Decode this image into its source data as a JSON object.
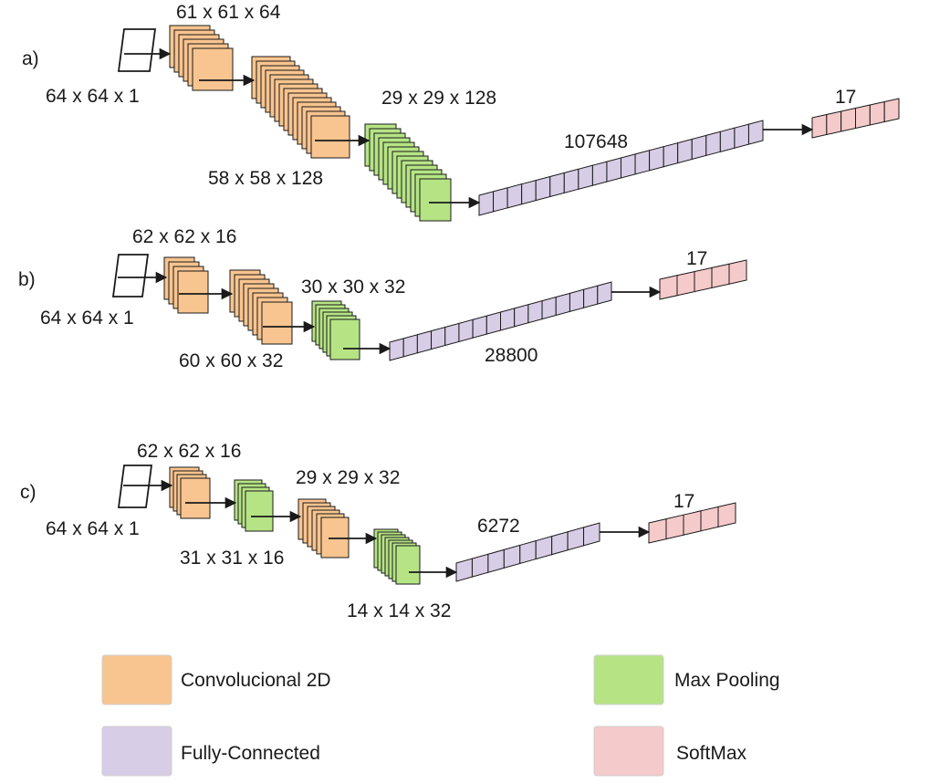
{
  "colors": {
    "conv": "#f8c48f",
    "pool": "#b6e485",
    "fc": "#d8cde6",
    "softmax": "#f5caca",
    "stroke": "#1a1a1a"
  },
  "panels": {
    "a": {
      "label": "a)",
      "input": "64 x 64 x 1",
      "conv1": "61 x 61 x 64",
      "conv2": "58 x 58 x 128",
      "pool1": "29 x 29 x 128",
      "fc": "107648",
      "softmax": "17"
    },
    "b": {
      "label": "b)",
      "input": "64 x 64 x 1",
      "conv1": "62 x 62 x 16",
      "conv2": "60 x 60 x 32",
      "pool1": "30 x 30 x 32",
      "fc": "28800",
      "softmax": "17"
    },
    "c": {
      "label": "c)",
      "input": "64 x 64 x 1",
      "conv1": "62 x 62 x 16",
      "pool1": "31 x 31 x 16",
      "conv2": "29 x 29 x 32",
      "pool2": "14 x 14 x 32",
      "fc": "6272",
      "softmax": "17"
    }
  },
  "legend": {
    "conv": "Convolucional 2D",
    "pool": "Max Pooling",
    "fc": "Fully-Connected",
    "softmax": "SoftMax"
  }
}
